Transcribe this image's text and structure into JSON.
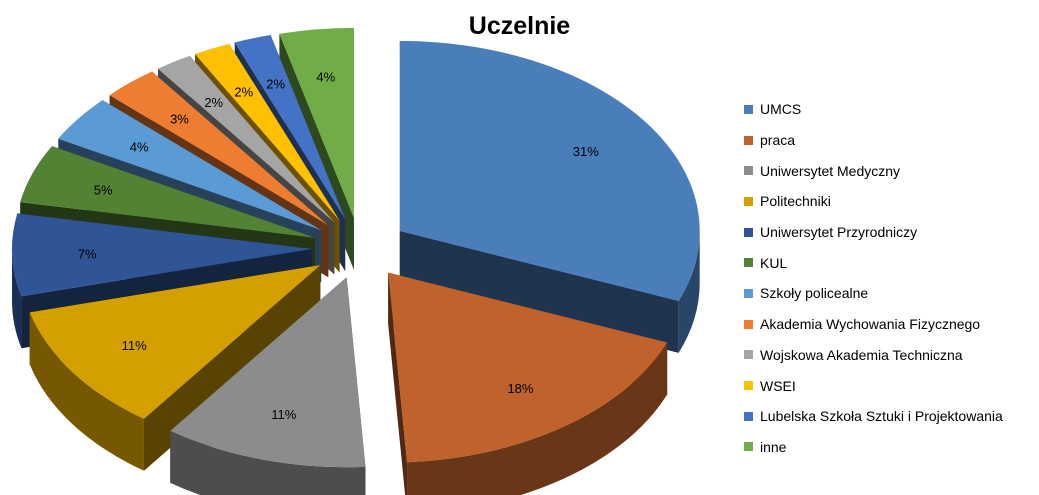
{
  "chart_data": {
    "type": "pie",
    "title": "Uczelnie",
    "categories": [
      "UMCS",
      "praca",
      "Uniwersytet Medyczny",
      "Politechniki",
      "Uniwersytet Przyrodniczy",
      "KUL",
      "Szkoły policealne",
      "Akademia Wychowania Fizycznego",
      "Wojskowa Akademia Techniczna",
      "WSEI",
      "Lubelska Szkoła Sztuki i Projektowania",
      "inne"
    ],
    "values": [
      31,
      18,
      11,
      11,
      7,
      5,
      4,
      3,
      2,
      2,
      2,
      4
    ],
    "labels": [
      "31%",
      "18%",
      "11%",
      "11%",
      "7%",
      "5%",
      "4%",
      "3%",
      "2%",
      "2%",
      "2%",
      "4%"
    ],
    "colors": [
      "#4a7ebb",
      "#c0622b",
      "#8c8c8c",
      "#d4a000",
      "#2f5597",
      "#548235",
      "#5b9bd5",
      "#ed7d31",
      "#a5a5a5",
      "#ffc000",
      "#4472c4",
      "#70ad47"
    ],
    "legend_position": "right",
    "style": "3d-exploded"
  }
}
